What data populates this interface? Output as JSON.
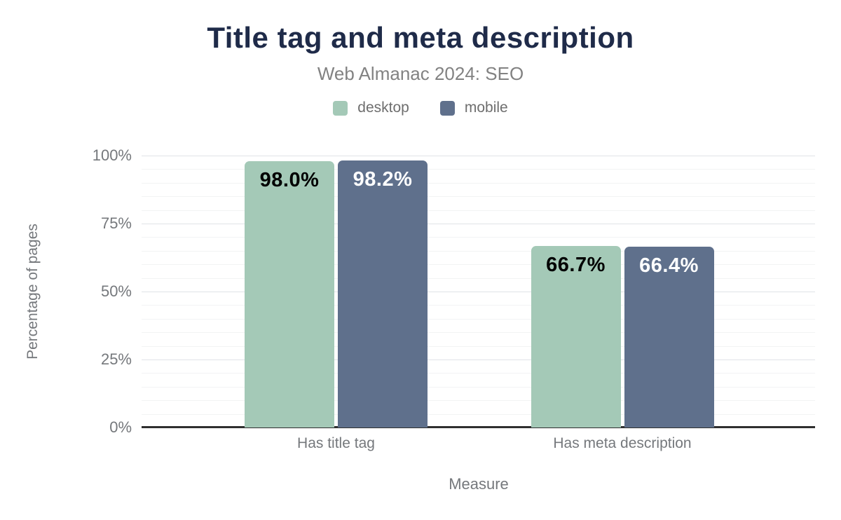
{
  "chart_data": {
    "type": "bar",
    "title": "Title tag and meta description",
    "subtitle": "Web Almanac 2024: SEO",
    "categories": [
      "Has title tag",
      "Has meta description"
    ],
    "series": [
      {
        "name": "desktop",
        "color": "#a4c9b7",
        "values": [
          98.0,
          66.7
        ],
        "value_labels": [
          "98.0%",
          "66.7%"
        ],
        "value_label_color": "#000000"
      },
      {
        "name": "mobile",
        "color": "#5f708c",
        "values": [
          98.2,
          66.4
        ],
        "value_labels": [
          "98.2%",
          "66.4%"
        ],
        "value_label_color": "#ffffff"
      }
    ],
    "xlabel": "Measure",
    "ylabel": "Percentage of pages",
    "ylim": [
      0,
      100
    ],
    "yticks": [
      0,
      25,
      50,
      75,
      100
    ],
    "ytick_labels": [
      "0%",
      "25%",
      "50%",
      "75%",
      "100%"
    ],
    "grid": "horizontal, major every 25%, minor every 5%",
    "legend_position": "top"
  },
  "colors": {
    "title": "#1f2b49",
    "subtitle": "#828282",
    "axis_text": "#75787c",
    "baseline": "#2f2f2f",
    "grid_major": "#e0e3e7",
    "grid_minor": "#f2f3f4",
    "background": "#ffffff"
  }
}
